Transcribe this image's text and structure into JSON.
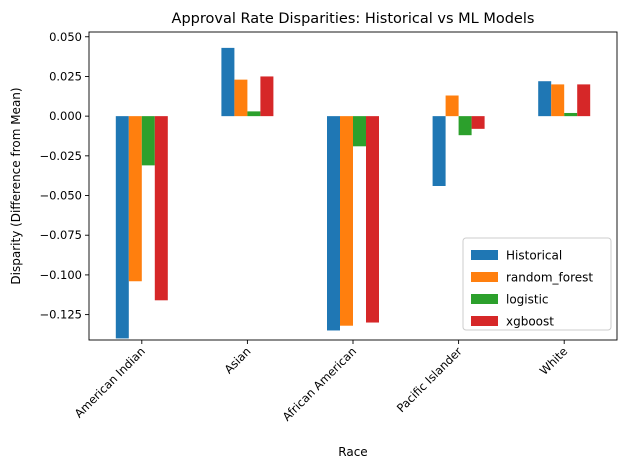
{
  "chart_data": {
    "type": "bar",
    "title": "Approval Rate Disparities: Historical vs ML Models",
    "xlabel": "Race",
    "ylabel": "Disparity (Difference from Mean)",
    "categories": [
      "American Indian",
      "Asian",
      "African American",
      "Pacific Islander",
      "White"
    ],
    "ylim": [
      -0.141,
      0.053
    ],
    "yticks": [
      -0.125,
      -0.1,
      -0.075,
      -0.05,
      -0.025,
      0.0,
      0.025,
      0.05
    ],
    "ytick_labels": [
      "−0.125",
      "−0.100",
      "−0.075",
      "−0.050",
      "−0.025",
      "0.000",
      "0.025",
      "0.050"
    ],
    "grid": false,
    "legend_position": "lower-right",
    "series": [
      {
        "name": "Historical",
        "color": "#1f77b4",
        "values": [
          -0.14,
          0.043,
          -0.135,
          -0.044,
          0.022
        ]
      },
      {
        "name": "random_forest",
        "color": "#ff7f0e",
        "values": [
          -0.104,
          0.023,
          -0.132,
          0.013,
          0.02
        ]
      },
      {
        "name": "logistic",
        "color": "#2ca02c",
        "values": [
          -0.031,
          0.003,
          -0.019,
          -0.012,
          0.002
        ]
      },
      {
        "name": "xgboost",
        "color": "#d62728",
        "values": [
          -0.116,
          0.025,
          -0.13,
          -0.008,
          0.02
        ]
      }
    ]
  }
}
